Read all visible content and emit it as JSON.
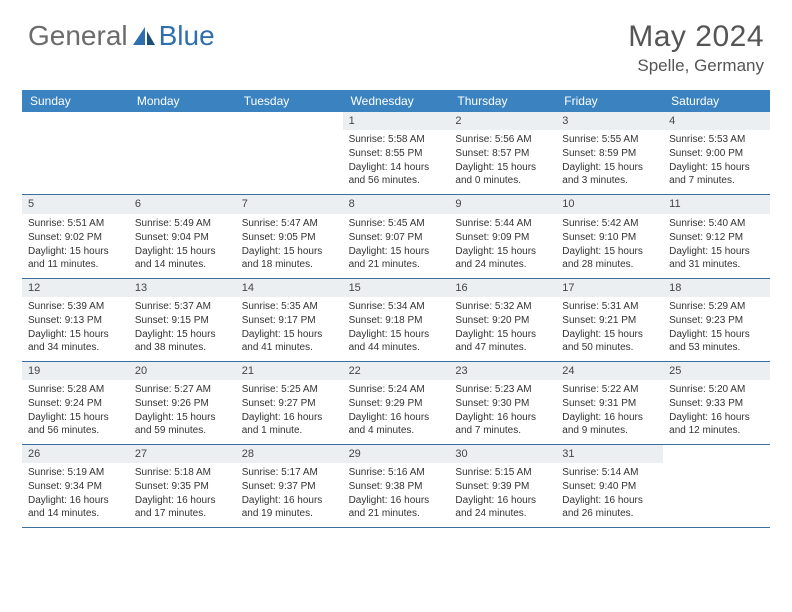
{
  "logo": {
    "text1": "General",
    "text2": "Blue"
  },
  "title": "May 2024",
  "location": "Spelle, Germany",
  "colors": {
    "header_bar": "#3b83c0",
    "week_divider": "#3b6fa0",
    "daynum_bg": "#eceff1",
    "text": "#333333",
    "title_text": "#555555",
    "logo_gray": "#6b6b6b",
    "logo_blue": "#2f6fb0"
  },
  "weekdays": [
    "Sunday",
    "Monday",
    "Tuesday",
    "Wednesday",
    "Thursday",
    "Friday",
    "Saturday"
  ],
  "weeks": [
    [
      {
        "empty": true
      },
      {
        "empty": true
      },
      {
        "empty": true
      },
      {
        "n": "1",
        "sr": "5:58 AM",
        "ss": "8:55 PM",
        "dl": "14 hours and 56 minutes."
      },
      {
        "n": "2",
        "sr": "5:56 AM",
        "ss": "8:57 PM",
        "dl": "15 hours and 0 minutes."
      },
      {
        "n": "3",
        "sr": "5:55 AM",
        "ss": "8:59 PM",
        "dl": "15 hours and 3 minutes."
      },
      {
        "n": "4",
        "sr": "5:53 AM",
        "ss": "9:00 PM",
        "dl": "15 hours and 7 minutes."
      }
    ],
    [
      {
        "n": "5",
        "sr": "5:51 AM",
        "ss": "9:02 PM",
        "dl": "15 hours and 11 minutes."
      },
      {
        "n": "6",
        "sr": "5:49 AM",
        "ss": "9:04 PM",
        "dl": "15 hours and 14 minutes."
      },
      {
        "n": "7",
        "sr": "5:47 AM",
        "ss": "9:05 PM",
        "dl": "15 hours and 18 minutes."
      },
      {
        "n": "8",
        "sr": "5:45 AM",
        "ss": "9:07 PM",
        "dl": "15 hours and 21 minutes."
      },
      {
        "n": "9",
        "sr": "5:44 AM",
        "ss": "9:09 PM",
        "dl": "15 hours and 24 minutes."
      },
      {
        "n": "10",
        "sr": "5:42 AM",
        "ss": "9:10 PM",
        "dl": "15 hours and 28 minutes."
      },
      {
        "n": "11",
        "sr": "5:40 AM",
        "ss": "9:12 PM",
        "dl": "15 hours and 31 minutes."
      }
    ],
    [
      {
        "n": "12",
        "sr": "5:39 AM",
        "ss": "9:13 PM",
        "dl": "15 hours and 34 minutes."
      },
      {
        "n": "13",
        "sr": "5:37 AM",
        "ss": "9:15 PM",
        "dl": "15 hours and 38 minutes."
      },
      {
        "n": "14",
        "sr": "5:35 AM",
        "ss": "9:17 PM",
        "dl": "15 hours and 41 minutes."
      },
      {
        "n": "15",
        "sr": "5:34 AM",
        "ss": "9:18 PM",
        "dl": "15 hours and 44 minutes."
      },
      {
        "n": "16",
        "sr": "5:32 AM",
        "ss": "9:20 PM",
        "dl": "15 hours and 47 minutes."
      },
      {
        "n": "17",
        "sr": "5:31 AM",
        "ss": "9:21 PM",
        "dl": "15 hours and 50 minutes."
      },
      {
        "n": "18",
        "sr": "5:29 AM",
        "ss": "9:23 PM",
        "dl": "15 hours and 53 minutes."
      }
    ],
    [
      {
        "n": "19",
        "sr": "5:28 AM",
        "ss": "9:24 PM",
        "dl": "15 hours and 56 minutes."
      },
      {
        "n": "20",
        "sr": "5:27 AM",
        "ss": "9:26 PM",
        "dl": "15 hours and 59 minutes."
      },
      {
        "n": "21",
        "sr": "5:25 AM",
        "ss": "9:27 PM",
        "dl": "16 hours and 1 minute."
      },
      {
        "n": "22",
        "sr": "5:24 AM",
        "ss": "9:29 PM",
        "dl": "16 hours and 4 minutes."
      },
      {
        "n": "23",
        "sr": "5:23 AM",
        "ss": "9:30 PM",
        "dl": "16 hours and 7 minutes."
      },
      {
        "n": "24",
        "sr": "5:22 AM",
        "ss": "9:31 PM",
        "dl": "16 hours and 9 minutes."
      },
      {
        "n": "25",
        "sr": "5:20 AM",
        "ss": "9:33 PM",
        "dl": "16 hours and 12 minutes."
      }
    ],
    [
      {
        "n": "26",
        "sr": "5:19 AM",
        "ss": "9:34 PM",
        "dl": "16 hours and 14 minutes."
      },
      {
        "n": "27",
        "sr": "5:18 AM",
        "ss": "9:35 PM",
        "dl": "16 hours and 17 minutes."
      },
      {
        "n": "28",
        "sr": "5:17 AM",
        "ss": "9:37 PM",
        "dl": "16 hours and 19 minutes."
      },
      {
        "n": "29",
        "sr": "5:16 AM",
        "ss": "9:38 PM",
        "dl": "16 hours and 21 minutes."
      },
      {
        "n": "30",
        "sr": "5:15 AM",
        "ss": "9:39 PM",
        "dl": "16 hours and 24 minutes."
      },
      {
        "n": "31",
        "sr": "5:14 AM",
        "ss": "9:40 PM",
        "dl": "16 hours and 26 minutes."
      },
      {
        "empty": true
      }
    ]
  ],
  "labels": {
    "sunrise": "Sunrise:",
    "sunset": "Sunset:",
    "daylight": "Daylight:"
  }
}
